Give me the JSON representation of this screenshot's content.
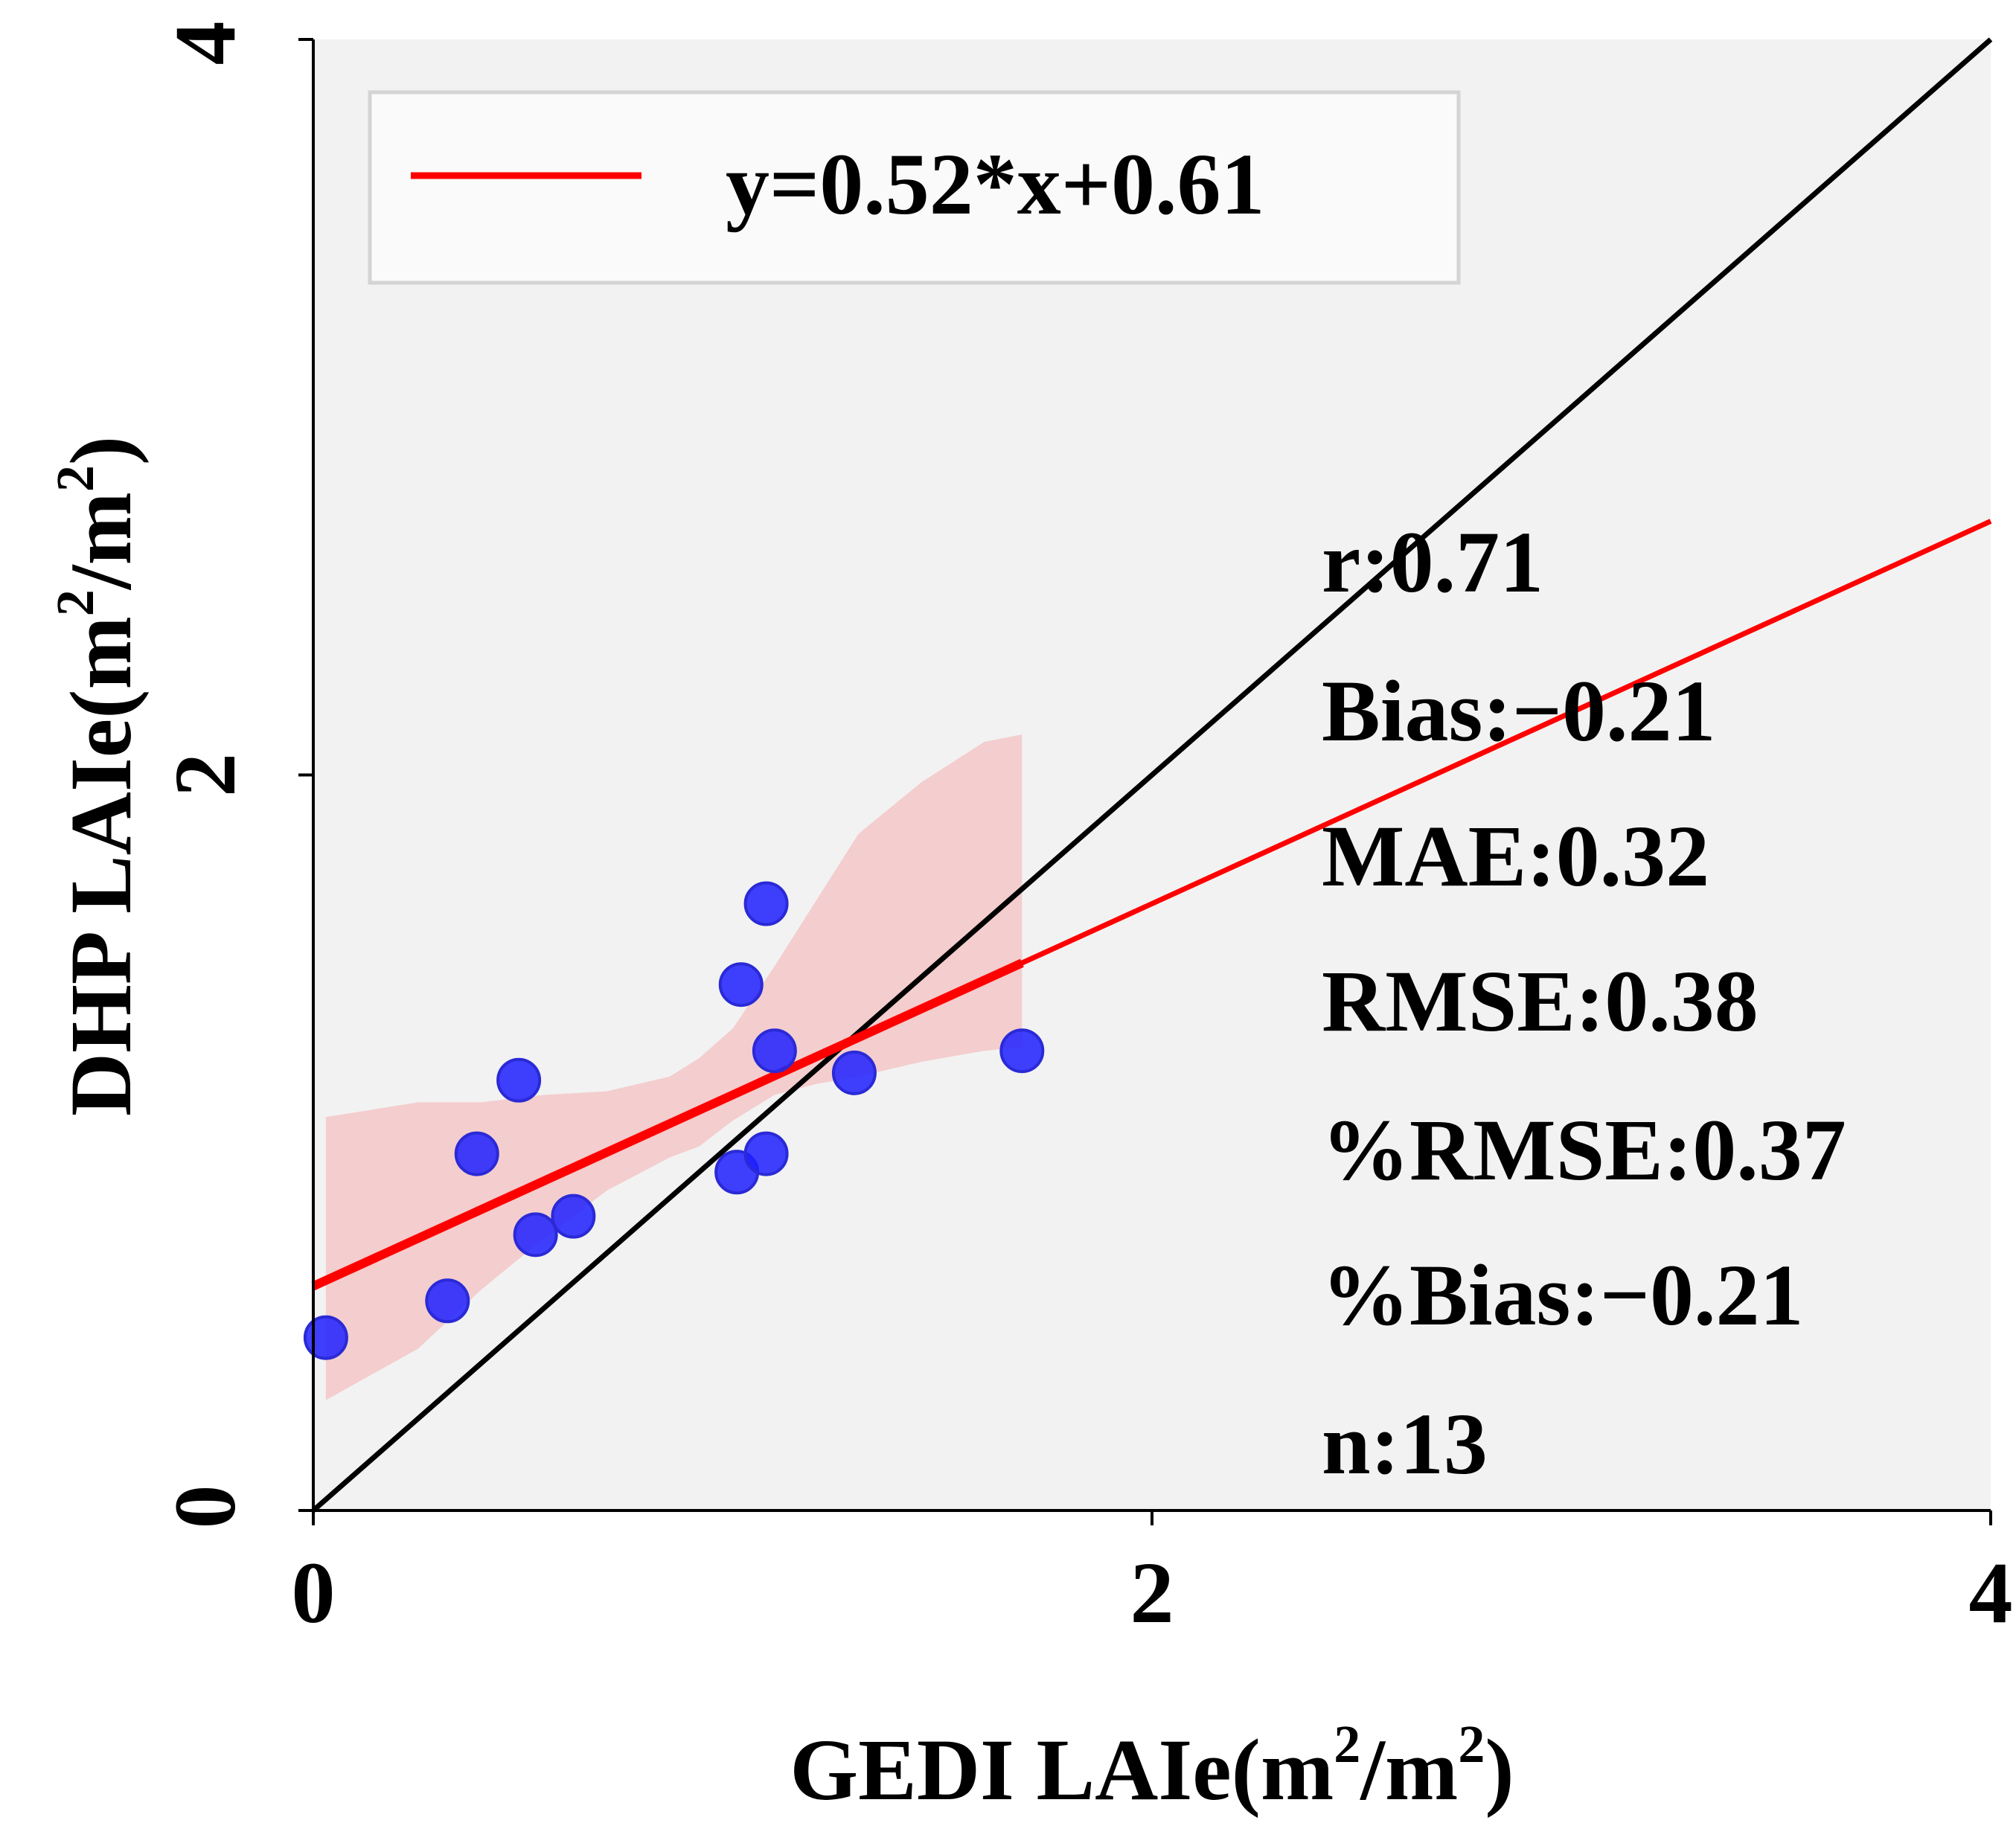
{
  "chart_data": {
    "type": "scatter",
    "title": "",
    "xlabel": {
      "main": "GEDI LAIe(m",
      "sup1": "2",
      "mid": "/m",
      "sup2": "2",
      "end": ")"
    },
    "ylabel": {
      "main": "DHP LAIe(m",
      "sup1": "2",
      "mid": "/m",
      "sup2": "2",
      "end": ")"
    },
    "xlim": [
      0,
      4
    ],
    "ylim": [
      0,
      4
    ],
    "xticks": [
      {
        "v": 0,
        "label": "0"
      },
      {
        "v": 2,
        "label": "2"
      },
      {
        "v": 4,
        "label": "4"
      }
    ],
    "yticks": [
      {
        "v": 0,
        "label": "0"
      },
      {
        "v": 2,
        "label": "2"
      },
      {
        "v": 4,
        "label": "4"
      }
    ],
    "grid": false,
    "points": [
      {
        "x": 0.03,
        "y": 0.47
      },
      {
        "x": 0.32,
        "y": 0.57
      },
      {
        "x": 0.39,
        "y": 0.97
      },
      {
        "x": 0.49,
        "y": 1.17
      },
      {
        "x": 0.53,
        "y": 0.75
      },
      {
        "x": 0.62,
        "y": 0.8
      },
      {
        "x": 1.01,
        "y": 0.92
      },
      {
        "x": 1.02,
        "y": 1.43
      },
      {
        "x": 1.08,
        "y": 1.65
      },
      {
        "x": 1.08,
        "y": 0.97
      },
      {
        "x": 1.1,
        "y": 1.25
      },
      {
        "x": 1.29,
        "y": 1.19
      },
      {
        "x": 1.69,
        "y": 1.25
      }
    ],
    "fit_line": {
      "slope": 0.52,
      "intercept": 0.61,
      "x_range": [
        0,
        4
      ],
      "thick_until": 1.69
    },
    "identity_line": {
      "x_range": [
        0,
        4
      ]
    },
    "confidence_band": {
      "x": [
        0.03,
        0.25,
        0.4,
        0.55,
        0.7,
        0.85,
        0.92,
        1.0,
        1.1,
        1.2,
        1.3,
        1.45,
        1.6,
        1.69
      ],
      "upper": [
        1.07,
        1.11,
        1.11,
        1.13,
        1.14,
        1.18,
        1.23,
        1.31,
        1.48,
        1.66,
        1.84,
        1.98,
        2.09,
        2.11
      ],
      "lower": [
        0.3,
        0.44,
        0.6,
        0.74,
        0.87,
        0.96,
        0.99,
        1.06,
        1.13,
        1.16,
        1.18,
        1.22,
        1.25,
        1.26
      ]
    },
    "legend": {
      "position": "top-left",
      "label": "y=0.52*x+0.61"
    },
    "stats": [
      {
        "name": "r",
        "text": "r:0.71"
      },
      {
        "name": "bias",
        "text": "Bias:−0.21"
      },
      {
        "name": "mae",
        "text": "MAE:0.32"
      },
      {
        "name": "rmse",
        "text": "RMSE:0.38"
      },
      {
        "name": "pct-rmse",
        "text": "%RMSE:0.37"
      },
      {
        "name": "pct-bias",
        "text": "%Bias:−0.21"
      },
      {
        "name": "n",
        "text": "n:13"
      }
    ],
    "colors": {
      "background": "#f2f2f2",
      "points": "#1f1fff",
      "points_edge": "#2a2ad6",
      "fit": "#ff0000",
      "band": "#f4c7c8",
      "identity": "#000000",
      "legend_bg": "#fafafa",
      "legend_border": "#d4d4d4"
    }
  }
}
